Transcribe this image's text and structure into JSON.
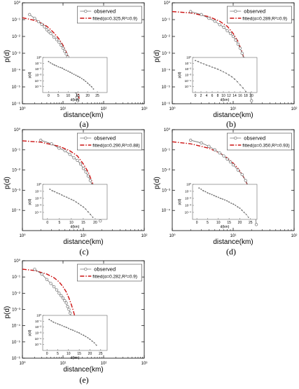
{
  "figure": {
    "ylabel": "p(d)",
    "xlabel": "distance(km)"
  },
  "colors": {
    "observed": "#707070",
    "fitted": "#cc1111",
    "inset": "#666666",
    "axis": "#000000"
  },
  "chart_data": [
    {
      "panel_label": "(a)",
      "type": "line",
      "scale": "log-log",
      "xlim": [
        1,
        1000
      ],
      "ylim": [
        1e-06,
        1
      ],
      "xticks": [
        {
          "v": 1,
          "t": "10⁰"
        },
        {
          "v": 10,
          "t": "10¹"
        },
        {
          "v": 100,
          "t": "10²"
        },
        {
          "v": 1000,
          "t": "10³"
        }
      ],
      "yticks": [
        {
          "v": 1,
          "t": "10⁰"
        },
        {
          "v": 0.1,
          "t": "10⁻¹"
        },
        {
          "v": 0.01,
          "t": "10⁻²"
        },
        {
          "v": 0.001,
          "t": "10⁻³"
        },
        {
          "v": 0.0001,
          "t": "10⁻⁴"
        },
        {
          "v": 1e-05,
          "t": "10⁻⁵"
        },
        {
          "v": 1e-06,
          "t": "10⁻⁶"
        }
      ],
      "legend": {
        "observed": "observed",
        "fitted": "fitted(α=0.325,R²=0.9)"
      },
      "observed": {
        "x": [
          1.5,
          2,
          2.5,
          3,
          3.5,
          4,
          4.5,
          5,
          6,
          7,
          8,
          9,
          10,
          11,
          12,
          13,
          14,
          15,
          16,
          17,
          18,
          19,
          20,
          21,
          22,
          23
        ],
        "y": [
          0.2,
          0.12,
          0.075,
          0.052,
          0.037,
          0.025,
          0.019,
          0.015,
          0.009,
          0.0065,
          0.0045,
          0.003,
          0.002,
          0.0013,
          0.0009,
          0.0006,
          0.0004,
          0.00025,
          0.00015,
          8e-05,
          4e-05,
          2e-05,
          1e-05,
          5e-06,
          2.5e-06,
          1.5e-06
        ]
      },
      "fitted": {
        "x": [
          1,
          2,
          3,
          4,
          5,
          6,
          8,
          10,
          12,
          14,
          16,
          18,
          20,
          22,
          25
        ],
        "y": [
          0.13,
          0.09,
          0.06,
          0.04,
          0.025,
          0.016,
          0.007,
          0.003,
          0.0012,
          0.0005,
          0.0002,
          7e-05,
          2.5e-05,
          8e-06,
          2e-06
        ]
      },
      "inset": {
        "xlim": [
          -3,
          30
        ],
        "ylim": [
          1e-06,
          1
        ],
        "xlabel": "d(km)",
        "ylabel": "p(d)",
        "xticks": [
          0,
          5,
          10,
          15,
          20,
          25
        ],
        "yticks": [
          {
            "v": 1,
            "t": "10⁰"
          },
          {
            "v": 0.1,
            "t": "10⁻¹"
          },
          {
            "v": 0.01,
            "t": "10⁻²"
          },
          {
            "v": 0.001,
            "t": "10⁻³"
          },
          {
            "v": 0.0001,
            "t": "10⁻⁴"
          },
          {
            "v": 1e-05,
            "t": "10⁻⁵"
          }
        ],
        "x": [
          0,
          1,
          2,
          3,
          4,
          5,
          6,
          7,
          8,
          9,
          10,
          11,
          12,
          13,
          14,
          15,
          16,
          17,
          18,
          19,
          20,
          21,
          22,
          23
        ],
        "y": [
          0.2,
          0.12,
          0.075,
          0.052,
          0.037,
          0.025,
          0.019,
          0.015,
          0.009,
          0.0065,
          0.0045,
          0.003,
          0.002,
          0.0013,
          0.0009,
          0.0006,
          0.0004,
          0.00025,
          0.00015,
          8e-05,
          4e-05,
          2e-05,
          1e-05,
          4e-06
        ]
      }
    },
    {
      "panel_label": "(b)",
      "type": "line",
      "scale": "log-log",
      "xlim": [
        1,
        100
      ],
      "ylim": [
        1e-06,
        1
      ],
      "xticks": [
        {
          "v": 1,
          "t": "10⁰"
        },
        {
          "v": 10,
          "t": "10¹"
        },
        {
          "v": 100,
          "t": "10²"
        }
      ],
      "yticks": [
        {
          "v": 1,
          "t": "10⁰"
        },
        {
          "v": 0.1,
          "t": "10⁻¹"
        },
        {
          "v": 0.01,
          "t": "10⁻²"
        },
        {
          "v": 0.001,
          "t": "10⁻³"
        },
        {
          "v": 0.0001,
          "t": "10⁻⁴"
        },
        {
          "v": 1e-05,
          "t": "10⁻⁵"
        },
        {
          "v": 1e-06,
          "t": "10⁻⁶"
        }
      ],
      "legend": {
        "observed": "observed",
        "fitted": "fitted(α=0.289,R²=0.9)"
      },
      "observed": {
        "x": [
          2,
          3,
          4,
          5,
          6,
          7,
          8,
          9,
          10,
          11,
          12,
          13,
          14,
          15,
          16,
          17,
          18,
          19,
          20
        ],
        "y": [
          0.3,
          0.2,
          0.12,
          0.08,
          0.05,
          0.035,
          0.022,
          0.015,
          0.01,
          0.006,
          0.0035,
          0.002,
          0.001,
          0.0005,
          0.0002,
          7e-05,
          2e-05,
          6e-06,
          1.5e-06
        ]
      },
      "fitted": {
        "x": [
          1,
          2,
          4,
          6,
          8,
          10,
          12,
          14,
          16,
          17
        ],
        "y": [
          0.3,
          0.25,
          0.15,
          0.08,
          0.04,
          0.015,
          0.005,
          0.0012,
          0.0002,
          5e-05
        ]
      },
      "inset": {
        "xlim": [
          -1,
          22
        ],
        "ylim": [
          1e-06,
          1
        ],
        "xlabel": "d(km)",
        "ylabel": "p(d)",
        "xticks": [
          0,
          2,
          4,
          6,
          8,
          10,
          12,
          14,
          16,
          18,
          20
        ],
        "yticks": [
          {
            "v": 1,
            "t": "10⁰"
          },
          {
            "v": 0.1,
            "t": "10⁻¹"
          },
          {
            "v": 0.01,
            "t": "10⁻²"
          },
          {
            "v": 0.001,
            "t": "10⁻³"
          },
          {
            "v": 0.0001,
            "t": "10⁻⁴"
          },
          {
            "v": 1e-05,
            "t": "10⁻⁵"
          }
        ],
        "x": [
          0,
          1,
          2,
          3,
          4,
          5,
          6,
          7,
          8,
          9,
          10,
          11,
          12,
          13,
          14,
          15,
          16,
          17,
          18
        ],
        "y": [
          0.3,
          0.2,
          0.12,
          0.08,
          0.05,
          0.035,
          0.022,
          0.015,
          0.01,
          0.006,
          0.0035,
          0.002,
          0.001,
          0.0005,
          0.0002,
          7e-05,
          2e-05,
          6e-06,
          1.5e-06
        ]
      }
    },
    {
      "panel_label": "(c)",
      "type": "line",
      "scale": "log-log",
      "xlim": [
        1,
        100
      ],
      "ylim": [
        1e-05,
        1
      ],
      "xticks": [
        {
          "v": 1,
          "t": "10⁰"
        },
        {
          "v": 10,
          "t": "10¹"
        },
        {
          "v": 100,
          "t": "10²"
        }
      ],
      "yticks": [
        {
          "v": 1,
          "t": "10⁰"
        },
        {
          "v": 0.1,
          "t": "10⁻¹"
        },
        {
          "v": 0.01,
          "t": "10⁻²"
        },
        {
          "v": 0.001,
          "t": "10⁻³"
        },
        {
          "v": 0.0001,
          "t": "10⁻⁴"
        }
      ],
      "legend": {
        "observed": "observed",
        "fitted": "fitted(α=0.290,R²=0.88)"
      },
      "observed": {
        "x": [
          2,
          3,
          4,
          5,
          6,
          7,
          8,
          9,
          10,
          11,
          12,
          13,
          14,
          15,
          16,
          17,
          18,
          19
        ],
        "y": [
          0.3,
          0.2,
          0.12,
          0.09,
          0.06,
          0.04,
          0.03,
          0.02,
          0.012,
          0.008,
          0.005,
          0.003,
          0.0018,
          0.001,
          0.0005,
          0.00022,
          8e-05,
          3e-05
        ]
      },
      "fitted": {
        "x": [
          1,
          2,
          4,
          6,
          8,
          10,
          12,
          14,
          16,
          17
        ],
        "y": [
          0.28,
          0.24,
          0.15,
          0.09,
          0.05,
          0.02,
          0.008,
          0.0025,
          0.0006,
          0.00022
        ]
      },
      "inset": {
        "xlim": [
          -2,
          25
        ],
        "ylim": [
          1e-05,
          1
        ],
        "xlabel": "d(km)",
        "ylabel": "p(d)",
        "xticks": [
          0,
          5,
          10,
          15,
          20
        ],
        "yticks": [
          {
            "v": 1,
            "t": "10⁰"
          },
          {
            "v": 0.1,
            "t": "10⁻¹"
          },
          {
            "v": 0.01,
            "t": "10⁻²"
          },
          {
            "v": 0.001,
            "t": "10⁻³"
          },
          {
            "v": 0.0001,
            "t": "10⁻⁴"
          }
        ],
        "x": [
          1,
          2,
          3,
          4,
          5,
          6,
          7,
          8,
          9,
          10,
          11,
          12,
          13,
          14,
          15,
          16,
          17,
          18,
          19
        ],
        "y": [
          0.2,
          0.12,
          0.09,
          0.06,
          0.045,
          0.03,
          0.02,
          0.015,
          0.01,
          0.007,
          0.005,
          0.003,
          0.0018,
          0.001,
          0.0006,
          0.0003,
          0.00012,
          5e-05,
          2e-05
        ]
      }
    },
    {
      "panel_label": "(d)",
      "type": "line",
      "scale": "log-log",
      "xlim": [
        1,
        100
      ],
      "ylim": [
        1e-05,
        1
      ],
      "xticks": [
        {
          "v": 1,
          "t": "10⁰"
        },
        {
          "v": 10,
          "t": "10¹"
        },
        {
          "v": 100,
          "t": "10²"
        }
      ],
      "yticks": [
        {
          "v": 1,
          "t": "10⁰"
        },
        {
          "v": 0.1,
          "t": "10⁻¹"
        },
        {
          "v": 0.01,
          "t": "10⁻²"
        },
        {
          "v": 0.001,
          "t": "10⁻³"
        },
        {
          "v": 0.0001,
          "t": "10⁻⁴"
        }
      ],
      "legend": {
        "observed": "observed",
        "fitted": "fitted(α=0.350,R²=0.93)"
      },
      "observed": {
        "x": [
          2,
          3,
          4,
          5,
          6,
          7,
          8,
          9,
          10,
          12,
          14,
          16,
          18,
          19,
          20,
          21,
          22,
          23,
          24
        ],
        "y": [
          0.3,
          0.22,
          0.15,
          0.1,
          0.07,
          0.05,
          0.035,
          0.025,
          0.018,
          0.01,
          0.006,
          0.003,
          0.0015,
          0.001,
          0.0006,
          0.0003,
          0.00015,
          6e-05,
          2e-05
        ]
      },
      "fitted": {
        "x": [
          1,
          2,
          4,
          6,
          8,
          10,
          12,
          14,
          16,
          18,
          20,
          22,
          24
        ],
        "y": [
          0.25,
          0.2,
          0.12,
          0.07,
          0.04,
          0.022,
          0.012,
          0.006,
          0.003,
          0.0013,
          0.0005,
          0.00015,
          4e-05
        ]
      },
      "inset": {
        "xlim": [
          -2,
          28
        ],
        "ylim": [
          1e-05,
          1
        ],
        "xlabel": "d(km)",
        "ylabel": "p(d)",
        "xticks": [
          0,
          5,
          10,
          15,
          20,
          25
        ],
        "yticks": [
          {
            "v": 1,
            "t": "10⁰"
          },
          {
            "v": 0.1,
            "t": "10⁻¹"
          },
          {
            "v": 0.01,
            "t": "10⁻²"
          },
          {
            "v": 0.001,
            "t": "10⁻³"
          },
          {
            "v": 0.0001,
            "t": "10⁻⁴"
          }
        ],
        "x": [
          1,
          2,
          3,
          4,
          5,
          6,
          7,
          8,
          9,
          10,
          11,
          12,
          13,
          14,
          15,
          16,
          17,
          18,
          19,
          20,
          21,
          22,
          23,
          24
        ],
        "y": [
          0.3,
          0.2,
          0.12,
          0.09,
          0.06,
          0.045,
          0.035,
          0.025,
          0.018,
          0.014,
          0.01,
          0.008,
          0.006,
          0.0045,
          0.003,
          0.002,
          0.0015,
          0.001,
          0.0006,
          0.0004,
          0.0002,
          0.0001,
          5e-05,
          2e-05
        ]
      }
    },
    {
      "panel_label": "(e)",
      "type": "line",
      "scale": "log-log",
      "xlim": [
        1,
        1000
      ],
      "ylim": [
        1e-06,
        1
      ],
      "xticks": [
        {
          "v": 1,
          "t": "10⁰"
        },
        {
          "v": 10,
          "t": "10¹"
        },
        {
          "v": 100,
          "t": "10²"
        },
        {
          "v": 1000,
          "t": "10³"
        }
      ],
      "yticks": [
        {
          "v": 1,
          "t": "10⁰"
        },
        {
          "v": 0.1,
          "t": "10⁻¹"
        },
        {
          "v": 0.01,
          "t": "10⁻²"
        },
        {
          "v": 0.001,
          "t": "10⁻³"
        },
        {
          "v": 0.0001,
          "t": "10⁻⁴"
        },
        {
          "v": 1e-05,
          "t": "10⁻⁵"
        },
        {
          "v": 1e-06,
          "t": "10⁻⁶"
        }
      ],
      "legend": {
        "observed": "observed",
        "fitted": "fitted(α=0.282,R²=0.9)"
      },
      "observed": {
        "x": [
          2,
          3,
          4,
          5,
          6,
          7,
          8,
          9,
          10,
          11,
          12,
          13,
          14,
          15,
          16,
          17,
          18,
          19,
          20,
          21,
          22
        ],
        "y": [
          0.3,
          0.15,
          0.07,
          0.04,
          0.025,
          0.016,
          0.01,
          0.007,
          0.005,
          0.0035,
          0.0025,
          0.0015,
          0.001,
          0.0006,
          0.00035,
          0.0002,
          0.00012,
          7e-05,
          4e-05,
          2.5e-05,
          1.2e-05
        ]
      },
      "fitted": {
        "x": [
          1,
          2,
          4,
          6,
          8,
          10,
          12,
          14,
          16,
          18,
          20,
          22
        ],
        "y": [
          0.3,
          0.25,
          0.15,
          0.09,
          0.05,
          0.025,
          0.012,
          0.005,
          0.002,
          0.0008,
          0.0003,
          0.0001
        ]
      },
      "inset": {
        "xlim": [
          -2,
          28
        ],
        "ylim": [
          1e-06,
          1
        ],
        "xlabel": "d(km)",
        "ylabel": "p(d)",
        "xticks": [
          0,
          5,
          10,
          15,
          20,
          25
        ],
        "yticks": [
          {
            "v": 1,
            "t": "10⁰"
          },
          {
            "v": 0.1,
            "t": "10⁻¹"
          },
          {
            "v": 0.01,
            "t": "10⁻²"
          },
          {
            "v": 0.001,
            "t": "10⁻³"
          },
          {
            "v": 0.0001,
            "t": "10⁻⁴"
          },
          {
            "v": 1e-05,
            "t": "10⁻⁵"
          }
        ],
        "x": [
          1,
          2,
          3,
          4,
          5,
          6,
          7,
          8,
          9,
          10,
          11,
          12,
          13,
          14,
          15,
          16,
          17,
          18,
          19,
          20,
          21,
          22,
          23
        ],
        "y": [
          0.2,
          0.12,
          0.07,
          0.05,
          0.035,
          0.025,
          0.018,
          0.012,
          0.009,
          0.006,
          0.004,
          0.003,
          0.002,
          0.0014,
          0.001,
          0.0006,
          0.0004,
          0.00025,
          0.00015,
          8e-05,
          4e-05,
          2e-05,
          8e-06
        ]
      }
    }
  ]
}
